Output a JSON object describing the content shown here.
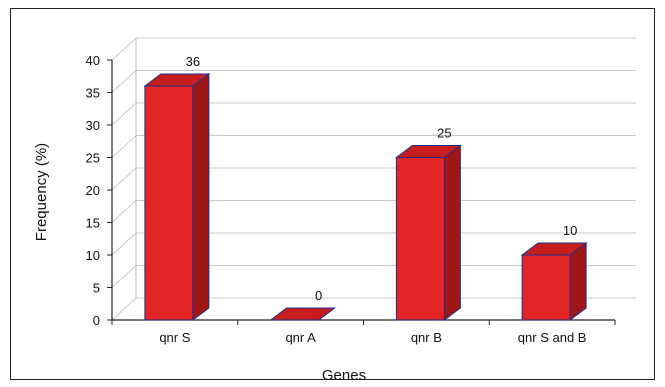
{
  "chart_data": {
    "type": "bar",
    "title": "",
    "xlabel": "Genes",
    "ylabel": "Frequency (%)",
    "categories": [
      "qnr S",
      "qnr A",
      "qnr B",
      "qnr S and B"
    ],
    "values": [
      36,
      0,
      25,
      10
    ],
    "data_labels": [
      "36",
      "0",
      "25",
      "10"
    ],
    "yticks": [
      "0",
      "5",
      "10",
      "15",
      "20",
      "25",
      "30",
      "35",
      "40"
    ],
    "ylim": [
      0,
      40
    ],
    "grid": true,
    "legend": "none",
    "style": "3d",
    "colors": {
      "bar_front": "#e32424",
      "bar_side": "#a01616",
      "bar_top": "#c81d1d",
      "bar_outline": "#1c2f8f",
      "gridline": "#c8c8c8",
      "axis": "#222222"
    }
  }
}
